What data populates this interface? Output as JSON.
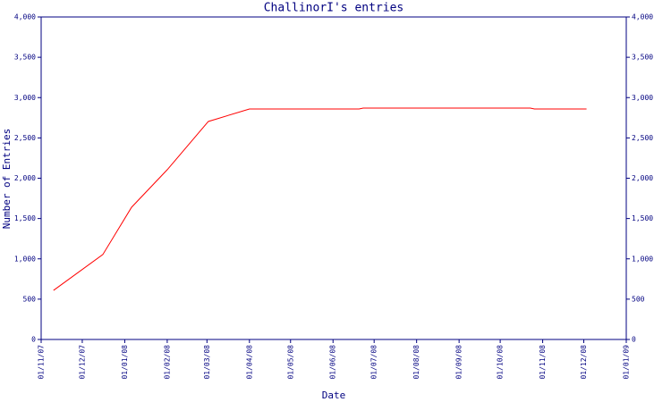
{
  "chart_data": {
    "type": "line",
    "title": "ChallinorI's entries",
    "x_label": "Date",
    "y_label": "Number of Entries",
    "x": [
      "2007-11-10",
      "2007-12-16",
      "2008-01-06",
      "2008-02-01",
      "2008-03-02",
      "2008-04-01",
      "2008-06-20",
      "2008-06-23",
      "2008-10-23",
      "2008-10-26",
      "2008-12-03"
    ],
    "values": [
      609,
      1053,
      1640,
      2105,
      2704,
      2859,
      2859,
      2870,
      2870,
      2859,
      2859
    ],
    "color": "#ff0000",
    "xlim": [
      "2007-11-01",
      "2009-01-01"
    ],
    "xticks": [
      {
        "value": "2007-11-01",
        "label": "01/11/07"
      },
      {
        "value": "2007-12-01",
        "label": "01/12/07"
      },
      {
        "value": "2008-01-01",
        "label": "01/01/08"
      },
      {
        "value": "2008-02-01",
        "label": "01/02/08"
      },
      {
        "value": "2008-03-01",
        "label": "01/03/08"
      },
      {
        "value": "2008-04-01",
        "label": "01/04/08"
      },
      {
        "value": "2008-05-01",
        "label": "01/05/08"
      },
      {
        "value": "2008-06-01",
        "label": "01/06/08"
      },
      {
        "value": "2008-07-01",
        "label": "01/07/08"
      },
      {
        "value": "2008-08-01",
        "label": "01/08/08"
      },
      {
        "value": "2008-09-01",
        "label": "01/09/08"
      },
      {
        "value": "2008-10-01",
        "label": "01/10/08"
      },
      {
        "value": "2008-11-01",
        "label": "01/11/08"
      },
      {
        "value": "2008-12-01",
        "label": "01/12/08"
      },
      {
        "value": "2009-01-01",
        "label": "01/01/09"
      }
    ],
    "ylim": [
      0,
      4000
    ],
    "yticks": [
      0,
      500,
      {
        "value": 1000,
        "label": "1,000"
      },
      {
        "value": 1500,
        "label": "1,500"
      },
      {
        "value": 2000,
        "label": "2,000"
      },
      {
        "value": 2500,
        "label": "2,500"
      },
      {
        "value": 3000,
        "label": "3,000"
      },
      {
        "value": 3500,
        "label": "3,500"
      },
      {
        "value": 4000,
        "label": "4,000"
      }
    ],
    "y2lim": [
      0,
      4000
    ],
    "y2ticks": [
      0,
      500,
      {
        "value": 1000,
        "label": "1,000"
      },
      {
        "value": 1500,
        "label": "1,500"
      },
      {
        "value": 2000,
        "label": "2,000"
      },
      {
        "value": 2500,
        "label": "2,500"
      },
      {
        "value": 3000,
        "label": "3,000"
      },
      {
        "value": 3500,
        "label": "3,500"
      },
      {
        "value": 4000,
        "label": "4,000"
      }
    ],
    "axis_color": "#000080"
  }
}
